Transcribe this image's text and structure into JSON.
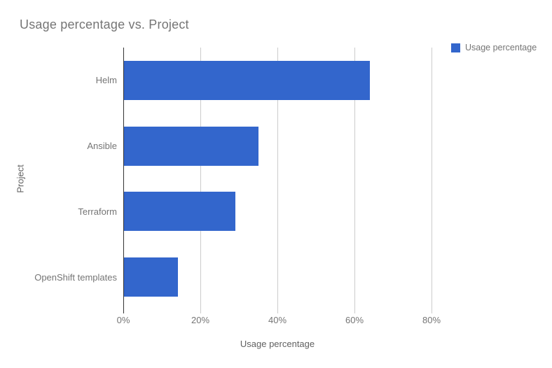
{
  "title": "Usage percentage vs. Project",
  "legend": {
    "position": "top-right",
    "items": [
      {
        "label": "Usage percentage",
        "color": "#3366cc"
      }
    ]
  },
  "axes": {
    "x": {
      "title": "Usage percentage",
      "tick_labels": [
        "0%",
        "20%",
        "40%",
        "60%",
        "80%"
      ],
      "min": 0,
      "max": 80
    },
    "y": {
      "title": "Project"
    }
  },
  "chart_data": {
    "type": "bar",
    "orientation": "horizontal",
    "title": "Usage percentage vs. Project",
    "categories": [
      "Helm",
      "Ansible",
      "Terraform",
      "OpenShift templates"
    ],
    "series": [
      {
        "name": "Usage percentage",
        "values": [
          64,
          35,
          29,
          14
        ]
      }
    ],
    "xlabel": "Usage percentage",
    "ylabel": "Project",
    "xlim": [
      0,
      80
    ],
    "xticks": [
      0,
      20,
      40,
      60,
      80
    ],
    "grid": true,
    "legend_position": "top-right",
    "bar_color": "#3366cc"
  },
  "colors": {
    "bar": "#3366cc",
    "gridline": "#cccccc",
    "axis_line": "#333333",
    "title_text": "#757575",
    "label_text": "#757575",
    "axis_title_text": "#616161",
    "background": "#ffffff"
  }
}
